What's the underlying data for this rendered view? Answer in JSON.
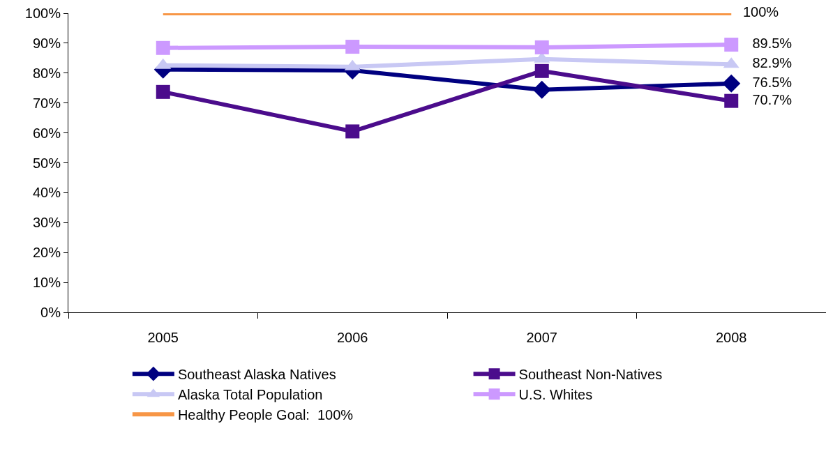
{
  "chart_data": {
    "type": "line",
    "categories": [
      "2005",
      "2006",
      "2007",
      "2008"
    ],
    "series": [
      {
        "name": "Southeast Alaska Natives",
        "color": "#000080",
        "marker": "diamond",
        "values": [
          81.2,
          80.9,
          74.4,
          76.5
        ],
        "value_labels": [
          null,
          null,
          null,
          "76.5%"
        ]
      },
      {
        "name": "Southeast Non-Natives",
        "color": "#4b0c8c",
        "marker": "square",
        "values": [
          73.7,
          60.5,
          80.7,
          70.7
        ],
        "value_labels": [
          null,
          null,
          null,
          "70.7%"
        ]
      },
      {
        "name": "Alaska Total Population",
        "color": "#c8c8f4",
        "marker": "triangle",
        "values": [
          82.6,
          82.1,
          84.7,
          82.9
        ],
        "value_labels": [
          null,
          null,
          null,
          "82.9%"
        ]
      },
      {
        "name": "U.S. Whites",
        "color": "#cc99ff",
        "marker": "square",
        "values": [
          88.4,
          88.8,
          88.6,
          89.5
        ],
        "value_labels": [
          null,
          null,
          null,
          "89.5%"
        ]
      },
      {
        "name": "Healthy People Goal:  100%",
        "color": "#f79646",
        "marker": "none",
        "values": [
          100,
          100,
          100,
          100
        ],
        "value_labels": [
          null,
          null,
          null,
          "100%"
        ]
      }
    ],
    "ylim": [
      0,
      100
    ],
    "yticks": [
      {
        "value": 0,
        "label": "0%"
      },
      {
        "value": 10,
        "label": "10%"
      },
      {
        "value": 20,
        "label": "20%"
      },
      {
        "value": 30,
        "label": "30%"
      },
      {
        "value": 40,
        "label": "40%"
      },
      {
        "value": 50,
        "label": "50%"
      },
      {
        "value": 60,
        "label": "60%"
      },
      {
        "value": 70,
        "label": "70%"
      },
      {
        "value": 80,
        "label": "80%"
      },
      {
        "value": 90,
        "label": "90%"
      },
      {
        "value": 100,
        "label": "100%"
      }
    ],
    "grid": false,
    "legend": "bottom"
  }
}
